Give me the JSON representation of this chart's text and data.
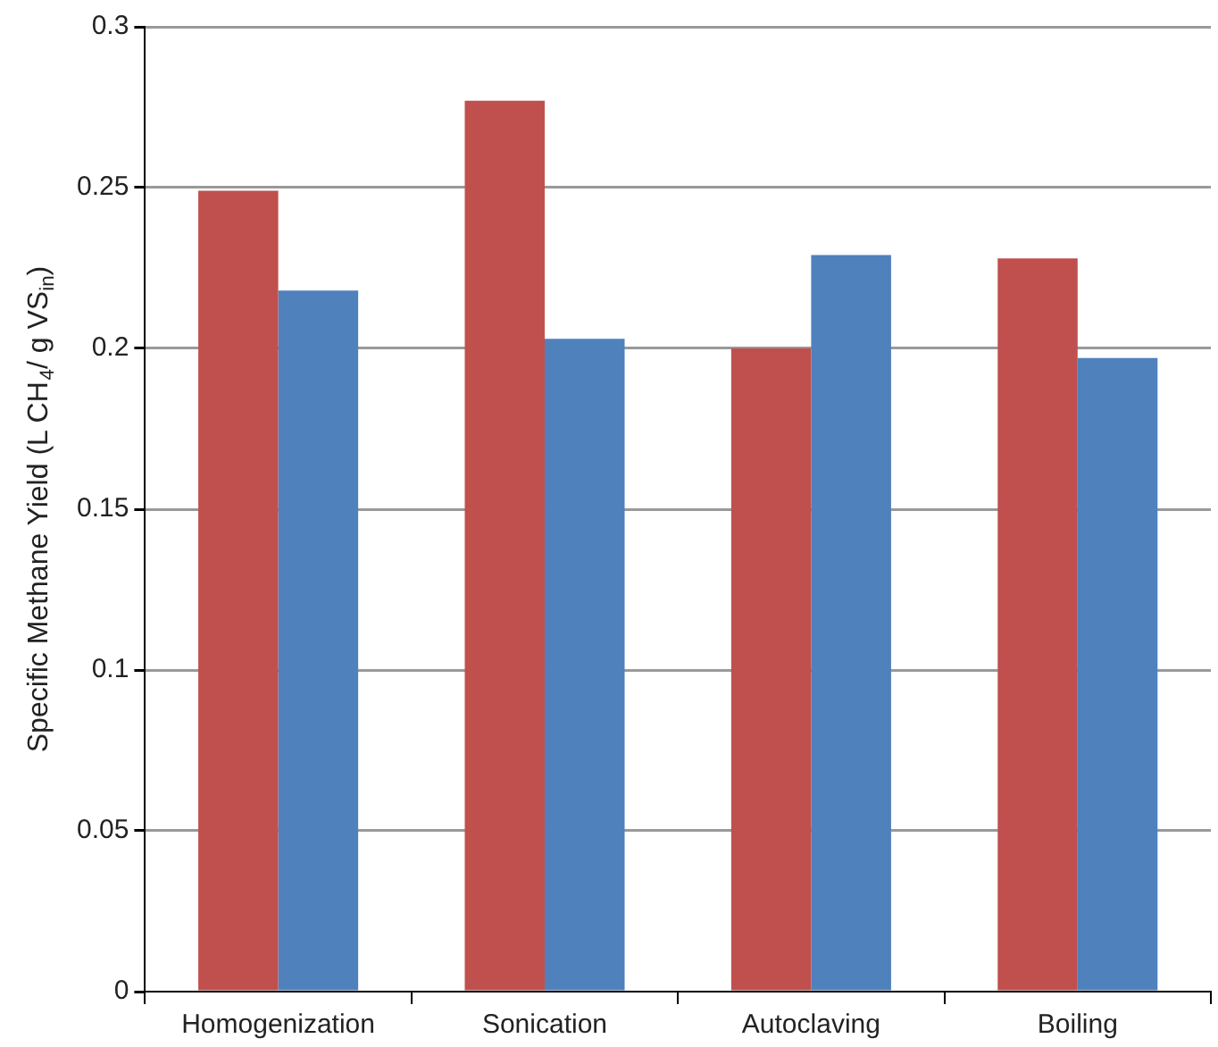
{
  "chart_data": {
    "type": "bar",
    "ylabel": "Specific Methane Yield (L CH$_{4}$/ g VS$_{in}$)",
    "categories": [
      "Homogenization",
      "Sonication",
      "Autoclaving",
      "Boiling"
    ],
    "series": [
      {
        "color": "#c0504d",
        "values": [
          0.249,
          0.277,
          0.2,
          0.228
        ]
      },
      {
        "color": "#4f81bd",
        "values": [
          0.218,
          0.203,
          0.229,
          0.197
        ]
      }
    ],
    "ylim": [
      0,
      0.3
    ],
    "yticks": [
      0,
      0.05,
      0.1,
      0.15,
      0.2,
      0.25,
      0.3
    ],
    "grid": "y",
    "legend": false
  }
}
